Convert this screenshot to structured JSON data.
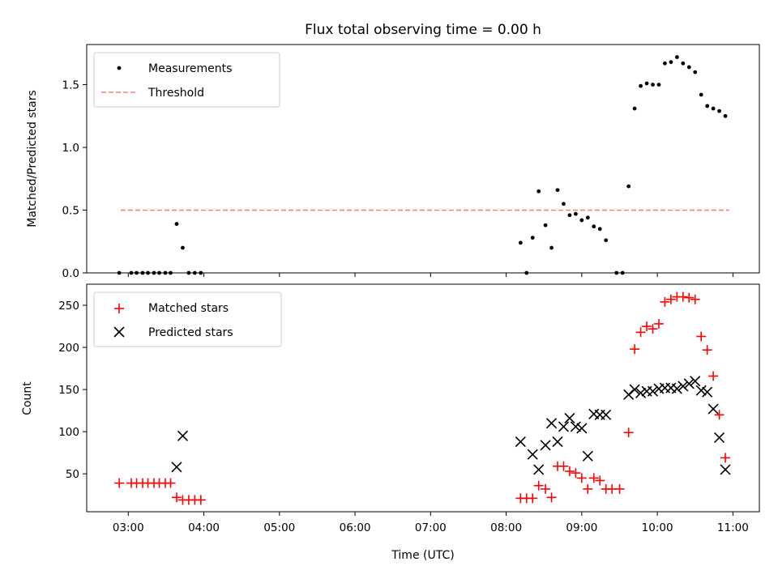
{
  "chart_data": [
    {
      "type": "scatter",
      "title": "Flux total observing time = 0.00 h",
      "xlabel": "",
      "ylabel": "Matched/Predicted stars",
      "xlim": [
        2.45,
        11.35
      ],
      "ylim": [
        0,
        1.82
      ],
      "yticks": [
        {
          "value": 0.0,
          "label": "0.0"
        },
        {
          "value": 0.5,
          "label": "0.5"
        },
        {
          "value": 1.0,
          "label": "1.0"
        },
        {
          "value": 1.5,
          "label": "1.5"
        }
      ],
      "legend_position": "top-left",
      "threshold": {
        "name": "Threshold",
        "value": 0.5,
        "x_start": 2.9,
        "x_end": 10.95,
        "color": "#ff7f7f"
      },
      "series": [
        {
          "name": "Measurements",
          "color": "#000000",
          "marker": "dot",
          "points": [
            [
              2.88,
              0.0
            ],
            [
              3.04,
              0.0
            ],
            [
              3.11,
              0.0
            ],
            [
              3.19,
              0.0
            ],
            [
              3.26,
              0.0
            ],
            [
              3.34,
              0.0
            ],
            [
              3.41,
              0.0
            ],
            [
              3.49,
              0.0
            ],
            [
              3.56,
              0.0
            ],
            [
              3.64,
              0.39
            ],
            [
              3.72,
              0.2
            ],
            [
              3.8,
              0.0
            ],
            [
              3.88,
              0.0
            ],
            [
              3.96,
              0.0
            ],
            [
              8.19,
              0.24
            ],
            [
              8.27,
              0.0
            ],
            [
              8.35,
              0.28
            ],
            [
              8.43,
              0.65
            ],
            [
              8.52,
              0.38
            ],
            [
              8.6,
              0.2
            ],
            [
              8.68,
              0.66
            ],
            [
              8.76,
              0.55
            ],
            [
              8.84,
              0.46
            ],
            [
              8.92,
              0.47
            ],
            [
              9.0,
              0.42
            ],
            [
              9.08,
              0.44
            ],
            [
              9.16,
              0.37
            ],
            [
              9.24,
              0.35
            ],
            [
              9.32,
              0.26
            ],
            [
              9.46,
              0.0
            ],
            [
              9.54,
              0.0
            ],
            [
              9.62,
              0.69
            ],
            [
              9.7,
              1.31
            ],
            [
              9.78,
              1.49
            ],
            [
              9.86,
              1.51
            ],
            [
              9.94,
              1.5
            ],
            [
              10.02,
              1.5
            ],
            [
              10.1,
              1.67
            ],
            [
              10.18,
              1.68
            ],
            [
              10.26,
              1.72
            ],
            [
              10.34,
              1.67
            ],
            [
              10.42,
              1.64
            ],
            [
              10.5,
              1.6
            ],
            [
              10.58,
              1.42
            ],
            [
              10.66,
              1.33
            ],
            [
              10.74,
              1.31
            ],
            [
              10.82,
              1.29
            ],
            [
              10.9,
              1.25
            ]
          ]
        }
      ]
    },
    {
      "type": "scatter",
      "title": "",
      "xlabel": "Time (UTC)",
      "ylabel": "Count",
      "xlim": [
        2.45,
        11.35
      ],
      "ylim": [
        5,
        275
      ],
      "xticks": [
        {
          "value": 3,
          "label": "03:00"
        },
        {
          "value": 4,
          "label": "04:00"
        },
        {
          "value": 5,
          "label": "05:00"
        },
        {
          "value": 6,
          "label": "06:00"
        },
        {
          "value": 7,
          "label": "07:00"
        },
        {
          "value": 8,
          "label": "08:00"
        },
        {
          "value": 9,
          "label": "09:00"
        },
        {
          "value": 10,
          "label": "10:00"
        },
        {
          "value": 11,
          "label": "11:00"
        }
      ],
      "yticks": [
        {
          "value": 50,
          "label": "50"
        },
        {
          "value": 100,
          "label": "100"
        },
        {
          "value": 150,
          "label": "150"
        },
        {
          "value": 200,
          "label": "200"
        },
        {
          "value": 250,
          "label": "250"
        }
      ],
      "legend_position": "top-left",
      "series": [
        {
          "name": "Matched stars",
          "color": "#ff0000",
          "marker": "plus",
          "points": [
            [
              2.88,
              39
            ],
            [
              3.04,
              39
            ],
            [
              3.11,
              39
            ],
            [
              3.19,
              39
            ],
            [
              3.26,
              39
            ],
            [
              3.34,
              39
            ],
            [
              3.41,
              39
            ],
            [
              3.49,
              39
            ],
            [
              3.56,
              39
            ],
            [
              3.64,
              22
            ],
            [
              3.72,
              19
            ],
            [
              3.8,
              19
            ],
            [
              3.88,
              19
            ],
            [
              3.96,
              19
            ],
            [
              8.19,
              21
            ],
            [
              8.27,
              21
            ],
            [
              8.35,
              21
            ],
            [
              8.43,
              36
            ],
            [
              8.52,
              32
            ],
            [
              8.6,
              22
            ],
            [
              8.68,
              59
            ],
            [
              8.76,
              59
            ],
            [
              8.84,
              53
            ],
            [
              8.92,
              51
            ],
            [
              9.0,
              45
            ],
            [
              9.08,
              32
            ],
            [
              9.16,
              45
            ],
            [
              9.24,
              42
            ],
            [
              9.32,
              32
            ],
            [
              9.4,
              32
            ],
            [
              9.5,
              32
            ],
            [
              9.62,
              99
            ],
            [
              9.7,
              198
            ],
            [
              9.78,
              218
            ],
            [
              9.86,
              225
            ],
            [
              9.94,
              222
            ],
            [
              10.02,
              228
            ],
            [
              10.1,
              254
            ],
            [
              10.18,
              257
            ],
            [
              10.26,
              260
            ],
            [
              10.34,
              260
            ],
            [
              10.42,
              259
            ],
            [
              10.5,
              257
            ],
            [
              10.58,
              213
            ],
            [
              10.66,
              197
            ],
            [
              10.74,
              166
            ],
            [
              10.82,
              120
            ],
            [
              10.9,
              69
            ]
          ]
        },
        {
          "name": "Predicted stars",
          "color": "#000000",
          "marker": "x",
          "points": [
            [
              3.64,
              58
            ],
            [
              3.72,
              95
            ],
            [
              8.19,
              88
            ],
            [
              8.35,
              73
            ],
            [
              8.43,
              55
            ],
            [
              8.52,
              84
            ],
            [
              8.6,
              110
            ],
            [
              8.68,
              88
            ],
            [
              8.76,
              106
            ],
            [
              8.84,
              116
            ],
            [
              8.92,
              106
            ],
            [
              9.0,
              104
            ],
            [
              9.08,
              71
            ],
            [
              9.16,
              121
            ],
            [
              9.24,
              120
            ],
            [
              9.32,
              120
            ],
            [
              9.62,
              144
            ],
            [
              9.7,
              150
            ],
            [
              9.78,
              146
            ],
            [
              9.86,
              148
            ],
            [
              9.94,
              148
            ],
            [
              10.02,
              151
            ],
            [
              10.1,
              152
            ],
            [
              10.18,
              152
            ],
            [
              10.26,
              151
            ],
            [
              10.34,
              154
            ],
            [
              10.42,
              157
            ],
            [
              10.5,
              160
            ],
            [
              10.58,
              149
            ],
            [
              10.66,
              147
            ],
            [
              10.74,
              127
            ],
            [
              10.82,
              93
            ],
            [
              10.9,
              55
            ]
          ]
        }
      ]
    }
  ]
}
